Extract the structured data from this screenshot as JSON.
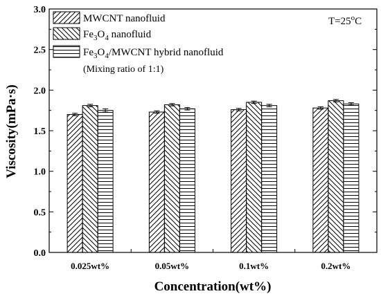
{
  "chart_data": {
    "type": "bar",
    "xlabel": "Concentration(wt%)",
    "ylabel": "Viscosity(mPa·s)",
    "ylim": [
      0.0,
      3.0
    ],
    "yticks": [
      "0.0",
      "0.5",
      "1.0",
      "1.5",
      "2.0",
      "2.5",
      "3.0"
    ],
    "categories": [
      "0.025wt%",
      "0.05wt%",
      "0.1wt%",
      "0.2wt%"
    ],
    "series": [
      {
        "name": "MWCNT nanofluid",
        "values": [
          1.7,
          1.73,
          1.76,
          1.78
        ],
        "errors": [
          0.015,
          0.015,
          0.015,
          0.015
        ],
        "pattern": "diag-up"
      },
      {
        "name": "Fe3O4 nanofluid",
        "values": [
          1.81,
          1.82,
          1.85,
          1.87
        ],
        "errors": [
          0.015,
          0.015,
          0.015,
          0.015
        ],
        "pattern": "diag-down"
      },
      {
        "name": "Fe3O4/MWCNT hybrid nanofluid",
        "values": [
          1.75,
          1.77,
          1.81,
          1.83
        ],
        "errors": [
          0.02,
          0.015,
          0.015,
          0.015
        ],
        "pattern": "horizontal"
      }
    ],
    "legend_position": "top-left",
    "legend_note": "(Mixing ratio of 1:1)",
    "annotation": "T=25°C"
  }
}
